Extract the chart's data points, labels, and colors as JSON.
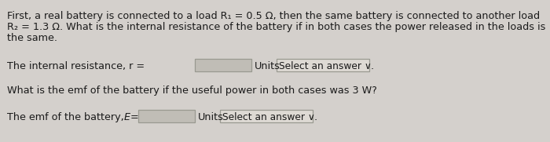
{
  "bg_color": "#d4d0cc",
  "text_color": "#1a1a1a",
  "line1": "First, a real battery is connected to a load R₁ = 0.5 Ω, then the same battery is connected to another load",
  "line2": "R₂ = 1.3 Ω. What is the internal resistance of the battery if in both cases the power released in the loads is",
  "line3": "the same.",
  "label_r": "The internal resistance, r =",
  "label_units1": "Units",
  "select1": "Select an answer ∨",
  "line6": "What is the emf of the battery if the useful power in both cases was 3 W?",
  "label_emf_pre": "The emf of the battery, ",
  "label_emf_E": "Ɛ",
  "label_emf_eq": " =",
  "label_units2": "Units",
  "select2": "Select an answer ∨",
  "font_size": 9.2,
  "font_size_sel": 8.8,
  "input_box_color": "#c0bdb6",
  "input_box_edge": "#999990",
  "select_box_color": "#dedad4",
  "select_box_edge": "#999990"
}
